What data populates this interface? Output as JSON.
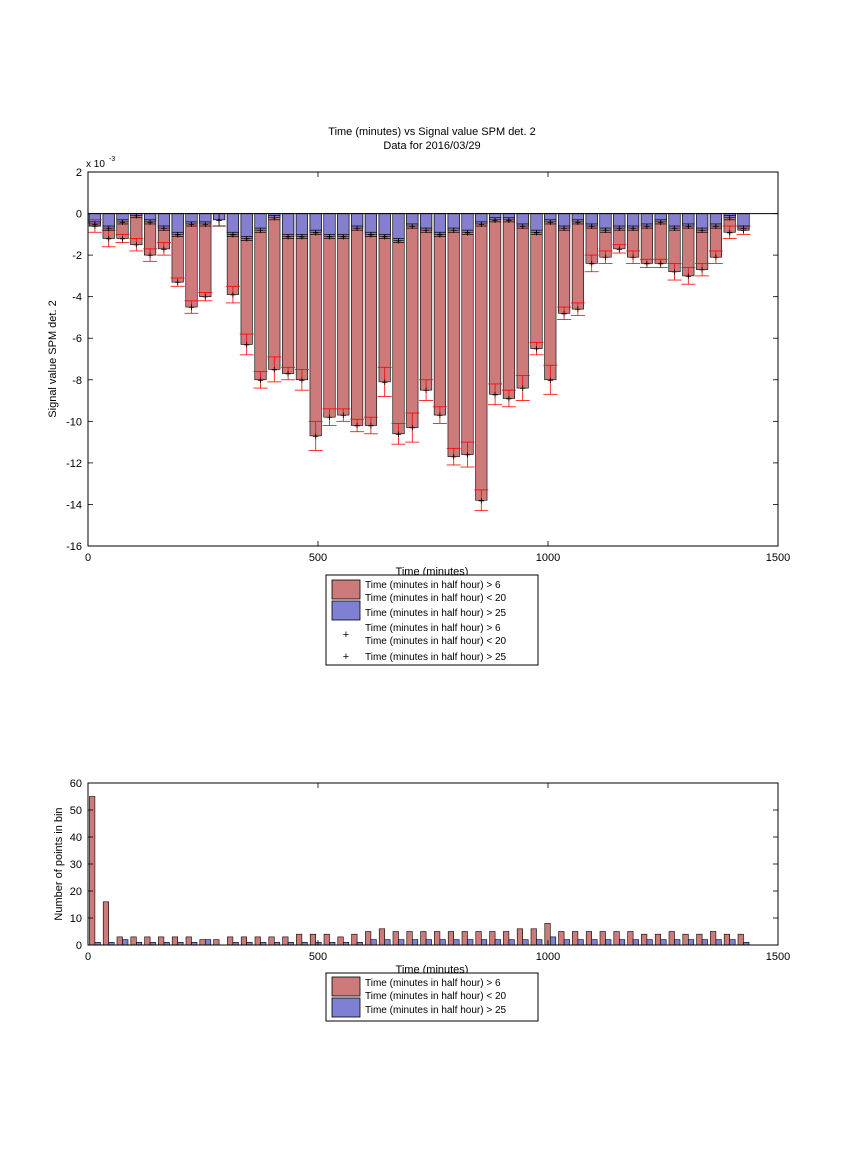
{
  "chart_data": [
    {
      "type": "bar",
      "title": "Time (minutes) vs Signal value SPM det. 2",
      "subtitle": "Data for 2016/03/29",
      "xlabel": "Time (minutes)",
      "ylabel": "Signal value SPM det. 2",
      "y_exponent_label": "x 10",
      "y_exponent_power": "-3",
      "xlim": [
        0,
        1500
      ],
      "ylim": [
        -16,
        2
      ],
      "x_ticks": [
        "0",
        "500",
        "1000",
        "1500"
      ],
      "y_ticks": [
        "2",
        "0",
        "-2",
        "-4",
        "-6",
        "-8",
        "-10",
        "-12",
        "-14",
        "-16"
      ],
      "grid": false,
      "legend_position": "below",
      "legend_entries": [
        "Time (minutes in half hour) > 6\nTime (minutes in half hour) < 20",
        "Time (minutes in half hour) > 25",
        "Time (minutes in half hour) > 6\nTime (minutes in half hour) < 20",
        "Time (minutes in half hour) > 25"
      ],
      "x": [
        15,
        45,
        75,
        105,
        135,
        165,
        195,
        225,
        255,
        285,
        315,
        345,
        375,
        405,
        435,
        465,
        495,
        525,
        555,
        585,
        615,
        645,
        675,
        705,
        735,
        765,
        795,
        825,
        855,
        885,
        915,
        945,
        975,
        1005,
        1035,
        1065,
        1095,
        1125,
        1155,
        1185,
        1215,
        1245,
        1275,
        1305,
        1335,
        1365,
        1395,
        1425
      ],
      "series": [
        {
          "name": "Time (minutes in half hour) > 6 Time (minutes in half hour) < 20",
          "color": "#cc7a7a",
          "marker_color": "#ff0000",
          "values": [
            -0.6,
            -1.2,
            -1.2,
            -1.5,
            -2.0,
            -1.7,
            -3.3,
            -4.5,
            -4.0,
            -0.3,
            -3.9,
            -6.3,
            -8.0,
            -7.5,
            -7.7,
            -8.0,
            -10.7,
            -9.8,
            -9.7,
            -10.2,
            -10.2,
            -8.1,
            -10.6,
            -10.3,
            -8.5,
            -9.7,
            -11.7,
            -11.6,
            -13.8,
            -8.7,
            -8.9,
            -8.4,
            -6.5,
            -8.0,
            -4.8,
            -4.6,
            -2.4,
            -2.1,
            -1.7,
            -2.1,
            -2.4,
            -2.4,
            -2.8,
            -3.0,
            -2.7,
            -2.1,
            -0.9,
            -0.8
          ],
          "errors": [
            0.3,
            0.4,
            0.2,
            0.3,
            0.3,
            0.3,
            0.2,
            0.3,
            0.2,
            0.3,
            0.4,
            0.5,
            0.4,
            0.6,
            0.3,
            0.5,
            0.7,
            0.4,
            0.3,
            0.3,
            0.4,
            0.7,
            0.5,
            0.7,
            0.5,
            0.4,
            0.4,
            0.6,
            0.5,
            0.5,
            0.4,
            0.6,
            0.3,
            0.7,
            0.3,
            0.3,
            0.4,
            0.3,
            0.2,
            0.3,
            0.2,
            0.2,
            0.4,
            0.4,
            0.3,
            0.3,
            0.3,
            0.2
          ]
        },
        {
          "name": "Time (minutes in half hour) > 25",
          "color": "#7f7fd4",
          "marker_color": "#0000ff",
          "values": [
            -0.5,
            -0.7,
            -0.4,
            -0.1,
            -0.4,
            -0.7,
            -1.0,
            -0.5,
            -0.5,
            -0.3,
            -1.0,
            -1.2,
            -0.8,
            -0.2,
            -1.1,
            -1.1,
            -0.9,
            -1.1,
            -1.1,
            -0.7,
            -1.0,
            -1.1,
            -1.3,
            -0.6,
            -0.8,
            -1.0,
            -0.8,
            -0.9,
            -0.5,
            -0.3,
            -0.3,
            -0.6,
            -0.9,
            -0.4,
            -0.7,
            -0.4,
            -0.6,
            -0.8,
            -0.7,
            -0.7,
            -0.6,
            -0.4,
            -0.7,
            -0.6,
            -0.8,
            -0.6,
            -0.2,
            -0.7
          ],
          "errors": [
            0.1,
            0.1,
            0.1,
            0.1,
            0.1,
            0.1,
            0.1,
            0.1,
            0.1,
            0.3,
            0.1,
            0.1,
            0.1,
            0.1,
            0.1,
            0.1,
            0.1,
            0.1,
            0.1,
            0.1,
            0.1,
            0.1,
            0.1,
            0.1,
            0.1,
            0.1,
            0.1,
            0.1,
            0.1,
            0.1,
            0.1,
            0.1,
            0.1,
            0.1,
            0.1,
            0.1,
            0.1,
            0.1,
            0.1,
            0.1,
            0.1,
            0.1,
            0.1,
            0.1,
            0.1,
            0.1,
            0.1,
            0.1
          ]
        }
      ]
    },
    {
      "type": "bar",
      "xlabel": "Time (minutes)",
      "ylabel": "Number of points in bin",
      "xlim": [
        0,
        1500
      ],
      "ylim": [
        0,
        60
      ],
      "x_ticks": [
        "0",
        "500",
        "1000",
        "1500"
      ],
      "y_ticks": [
        "60",
        "50",
        "40",
        "30",
        "20",
        "10",
        "0"
      ],
      "grid": false,
      "legend_position": "below",
      "legend_entries": [
        "Time (minutes in half hour) > 6\nTime (minutes in half hour) < 20",
        "Time (minutes in half hour) > 25"
      ],
      "x": [
        15,
        45,
        75,
        105,
        135,
        165,
        195,
        225,
        255,
        285,
        315,
        345,
        375,
        405,
        435,
        465,
        495,
        525,
        555,
        585,
        615,
        645,
        675,
        705,
        735,
        765,
        795,
        825,
        855,
        885,
        915,
        945,
        975,
        1005,
        1035,
        1065,
        1095,
        1125,
        1155,
        1185,
        1215,
        1245,
        1275,
        1305,
        1335,
        1365,
        1395,
        1425
      ],
      "series": [
        {
          "name": "Time (minutes in half hour) > 6 Time (minutes in half hour) < 20",
          "color": "#cc7a7a",
          "values": [
            55,
            16,
            3,
            3,
            3,
            3,
            3,
            3,
            2,
            2,
            3,
            3,
            3,
            3,
            3,
            4,
            4,
            4,
            3,
            4,
            5,
            6,
            5,
            5,
            5,
            5,
            5,
            5,
            5,
            5,
            5,
            6,
            6,
            8,
            5,
            5,
            5,
            5,
            5,
            5,
            4,
            4,
            5,
            4,
            4,
            5,
            4,
            4
          ]
        },
        {
          "name": "Time (minutes in half hour) > 25",
          "color": "#7f7fd4",
          "values": [
            1,
            1,
            2,
            1,
            1,
            1,
            1,
            1,
            2,
            0,
            1,
            1,
            1,
            1,
            1,
            1,
            1,
            1,
            1,
            1,
            2,
            2,
            2,
            2,
            2,
            2,
            2,
            2,
            2,
            2,
            2,
            2,
            2,
            3,
            2,
            2,
            2,
            2,
            2,
            2,
            2,
            2,
            2,
            2,
            2,
            2,
            2,
            1
          ]
        }
      ]
    }
  ]
}
